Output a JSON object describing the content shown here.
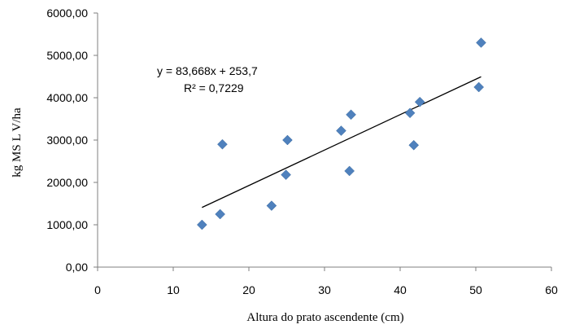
{
  "chart_data": {
    "type": "scatter",
    "title": "",
    "xlabel": "Altura do prato ascendente (cm)",
    "ylabel": "kg MS L V/ha",
    "xlim": [
      0,
      60
    ],
    "ylim": [
      0,
      6000
    ],
    "x_ticks": [
      "0",
      "10",
      "20",
      "30",
      "40",
      "50",
      "60"
    ],
    "y_ticks": [
      "0,00",
      "1000,00",
      "2000,00",
      "3000,00",
      "4000,00",
      "5000,00",
      "6000,00"
    ],
    "grid": false,
    "legend": "none",
    "marker_color": "#4f81bd",
    "series": [
      {
        "x": [
          13.8,
          16.2,
          16.5,
          23.0,
          24.9,
          25.1,
          32.2,
          33.3,
          33.5,
          41.3,
          41.8,
          42.6,
          50.4,
          50.7
        ],
        "y": [
          1000,
          1250,
          2900,
          1450,
          2180,
          3000,
          3220,
          2270,
          3600,
          3640,
          2880,
          3900,
          4250,
          5300
        ]
      }
    ],
    "trendline": {
      "type": "linear",
      "slope": 83.668,
      "intercept": 253.7,
      "x_range": [
        13.8,
        50.7
      ],
      "color": "#000000",
      "equation": "y = 83,668x + 253,7",
      "r_squared": "R² = 0,7229"
    }
  }
}
